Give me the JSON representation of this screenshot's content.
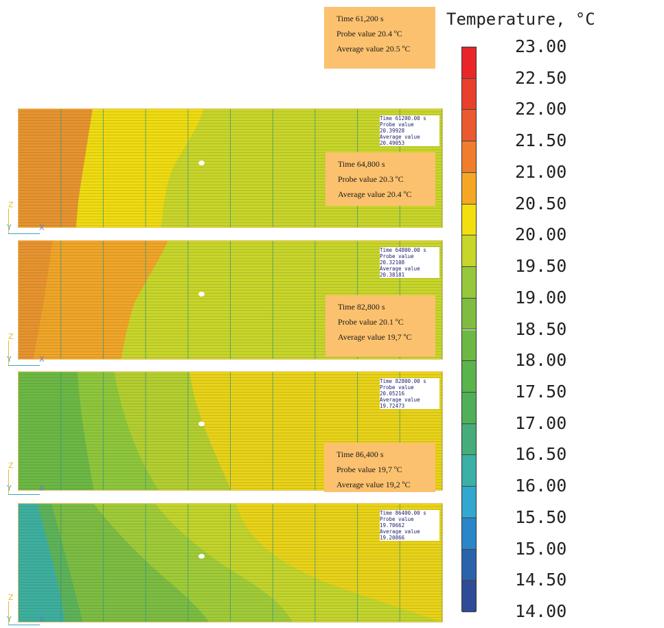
{
  "colorbar": {
    "title": "Temperature, °C",
    "ticks": [
      "23.00",
      "22.50",
      "22.00",
      "21.50",
      "21.00",
      "20.50",
      "20.00",
      "19.50",
      "19.00",
      "18.50",
      "18.00",
      "17.50",
      "17.00",
      "16.50",
      "16.00",
      "15.50",
      "15.00",
      "14.50",
      "14.00"
    ],
    "colors": [
      "#e8262a",
      "#e8402c",
      "#ea5a2e",
      "#ef7d2d",
      "#f5a724",
      "#f3df0e",
      "#c6d62a",
      "#96c83c",
      "#7ebd40",
      "#6cb845",
      "#5bb34c",
      "#50b058",
      "#46ad7a",
      "#3bb0a6",
      "#32a7cf",
      "#2a86c8",
      "#2b63ab",
      "#2f4b98"
    ]
  },
  "panels": [
    {
      "sim_info": {
        "time": "Time 61200.00 s",
        "probe_label": "Probe value",
        "probe_value": "20.39928",
        "avg_label": "Average value",
        "avg_value": "20.49053"
      },
      "axes": {
        "z": "Z",
        "y": "Y",
        "x": "X"
      }
    },
    {
      "sim_info": {
        "time": "Time 64800.00 s",
        "probe_label": "Probe value",
        "probe_value": "20.32108",
        "avg_label": "Average value",
        "avg_value": "20.38181"
      },
      "axes": {
        "z": "Z",
        "y": "Y",
        "x": "X"
      }
    },
    {
      "sim_info": {
        "time": "Time 82800.00 s",
        "probe_label": "Probe value",
        "probe_value": "20.05216",
        "avg_label": "Average value",
        "avg_value": "19.72473"
      },
      "axes": {
        "z": "Z",
        "y": "Y",
        "x": "X"
      }
    },
    {
      "sim_info": {
        "time": "Time 86400.00 s",
        "probe_label": "Probe value",
        "probe_value": "19.70662",
        "avg_label": "Average value",
        "avg_value": "19.20866"
      },
      "axes": {
        "z": "Z",
        "y": "Y",
        "x": "X"
      }
    }
  ],
  "callouts": [
    {
      "time": "Time 61,200 s",
      "probe": "Probe value 20.4 ºC",
      "average": "Average value 20.5 ºC"
    },
    {
      "time": "Time 64,800 s",
      "probe": "Probe value 20.3 ºC",
      "average": "Average value 20.4 ºC"
    },
    {
      "time": "Time 82,800 s",
      "probe": "Probe value 20.1 ºC",
      "average": "Average value 19,7 ºC"
    },
    {
      "time": "Time 86,400 s",
      "probe": "Probe value 19,7 ºC",
      "average": "Average value 19,2 ºC"
    }
  ],
  "chart_data": {
    "type": "heatmap",
    "title": "",
    "colorbar_label": "Temperature, °C",
    "colorbar_range": [
      14.0,
      23.0
    ],
    "colorbar_step": 0.5,
    "series": [
      {
        "time_s": 61200.0,
        "probe_value": 20.39928,
        "average_value": 20.49053
      },
      {
        "time_s": 64800.0,
        "probe_value": 20.32108,
        "average_value": 20.38181
      },
      {
        "time_s": 82800.0,
        "probe_value": 20.05216,
        "average_value": 19.72473
      },
      {
        "time_s": 86400.0,
        "probe_value": 19.70662,
        "average_value": 19.20866
      }
    ]
  }
}
